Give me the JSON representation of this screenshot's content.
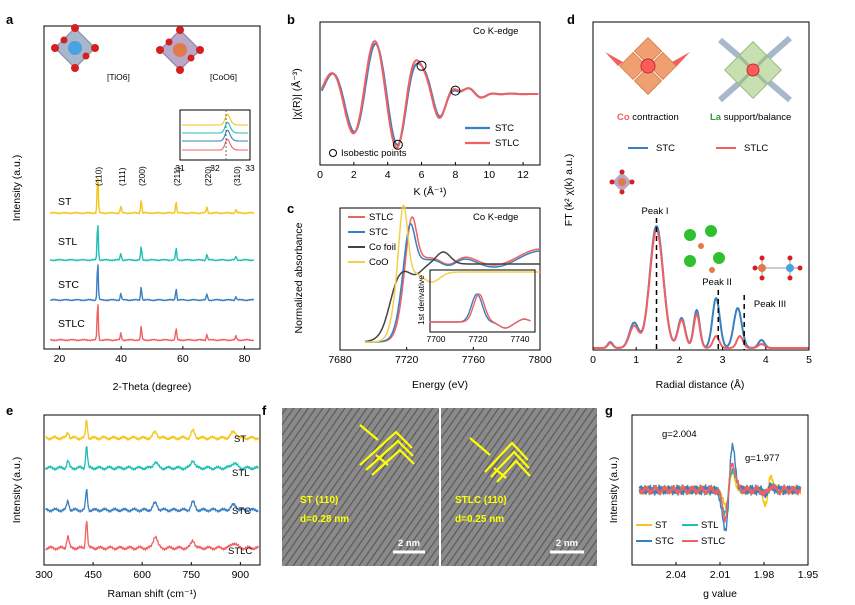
{
  "panel_labels": {
    "a": "a",
    "b": "b",
    "c": "c",
    "d": "d",
    "e": "e",
    "f": "f",
    "g": "g"
  },
  "colors": {
    "ST": "#f5c518",
    "STL": "#1fbfb8",
    "STC": "#3a7fc1",
    "STLC": "#f06060",
    "CoFoil": "#444444",
    "CoO": "#f2d04a"
  },
  "chart_data": [
    {
      "panel": "a",
      "type": "line",
      "xlabel": "2-Theta (degree)",
      "ylabel": "Intensity (a.u.)",
      "xlim": [
        15,
        85
      ],
      "xticks": [
        "20",
        "40",
        "60",
        "80"
      ],
      "series": [
        {
          "name": "ST"
        },
        {
          "name": "STL"
        },
        {
          "name": "STC"
        },
        {
          "name": "STLC"
        }
      ],
      "peaks": [
        {
          "x": 32.4,
          "label": "(110)",
          "h": 1.0
        },
        {
          "x": 39.9,
          "label": "(111)",
          "h": 0.18
        },
        {
          "x": 46.5,
          "label": "(200)",
          "h": 0.35
        },
        {
          "x": 57.8,
          "label": "(211)",
          "h": 0.3
        },
        {
          "x": 67.8,
          "label": "(220)",
          "h": 0.16
        },
        {
          "x": 77.2,
          "label": "(310)",
          "h": 0.1
        }
      ],
      "inset": {
        "xticks": [
          "31",
          "32",
          "33"
        ]
      },
      "structure_labels": [
        "[TiO6]",
        "[CoO6]"
      ]
    },
    {
      "panel": "b",
      "type": "line",
      "title": "Co K-edge",
      "xlabel": "K (Å⁻¹)",
      "ylabel": "|χ(R)| (Å⁻³)",
      "xlim": [
        0,
        13
      ],
      "xticks": [
        "0",
        "2",
        "4",
        "6",
        "8",
        "10",
        "12"
      ],
      "series": [
        {
          "name": "STC"
        },
        {
          "name": "STLC"
        }
      ],
      "isobestic_x": [
        4.6,
        6.0,
        8.0
      ],
      "annotation": "Isobestic points"
    },
    {
      "panel": "c",
      "type": "line",
      "title": "Co K-edge",
      "xlabel": "Energy (eV)",
      "ylabel": "Normalized absorbance",
      "xlim": [
        7680,
        7800
      ],
      "xticks": [
        "7680",
        "7720",
        "7760",
        "7800"
      ],
      "series": [
        {
          "name": "STLC"
        },
        {
          "name": "STC"
        },
        {
          "name": "Co foil"
        },
        {
          "name": "CoO"
        }
      ],
      "inset": {
        "ylabel": "1st derivative",
        "xticks": [
          "7700",
          "7720",
          "7740"
        ]
      }
    },
    {
      "panel": "d",
      "type": "line",
      "xlabel": "Radial distance (Å)",
      "ylabel": "FT (k² χ(k) a.u.)",
      "xlim": [
        0,
        5
      ],
      "xticks": [
        "0",
        "1",
        "2",
        "3",
        "4",
        "5"
      ],
      "series": [
        {
          "name": "STC"
        },
        {
          "name": "STLC"
        }
      ],
      "peak_labels": [
        "Peak I",
        "Peak II",
        "Peak III"
      ],
      "schematic_labels": {
        "co_word": "Co",
        "co_rest": " contraction",
        "la_word": "La",
        "la_rest": " support/balance"
      }
    },
    {
      "panel": "e",
      "type": "line",
      "xlabel": "Raman shift (cm⁻¹)",
      "ylabel": "Intensity (a.u.)",
      "xlim": [
        300,
        960
      ],
      "xticks": [
        "300",
        "450",
        "600",
        "750",
        "900"
      ],
      "series": [
        {
          "name": "ST"
        },
        {
          "name": "STL"
        },
        {
          "name": "STC"
        },
        {
          "name": "STLC"
        }
      ],
      "peaks": [
        373,
        430,
        640,
        755,
        880
      ]
    },
    {
      "panel": "f",
      "type": "image",
      "left": {
        "label": "ST (110)",
        "d": "d=0.28 nm",
        "scale": "2 nm"
      },
      "right": {
        "label": "STLC (110)",
        "d": "d=0.25 nm",
        "scale": "2 nm"
      }
    },
    {
      "panel": "g",
      "type": "line",
      "xlabel": "g value",
      "ylabel": "Intensity (a.u.)",
      "xlim": [
        2.07,
        1.95
      ],
      "xticks": [
        "2.04",
        "2.01",
        "1.98",
        "1.95"
      ],
      "series": [
        {
          "name": "ST"
        },
        {
          "name": "STL"
        },
        {
          "name": "STC"
        },
        {
          "name": "STLC"
        }
      ],
      "annotations": [
        "g=2.004",
        "g=1.977"
      ]
    }
  ]
}
